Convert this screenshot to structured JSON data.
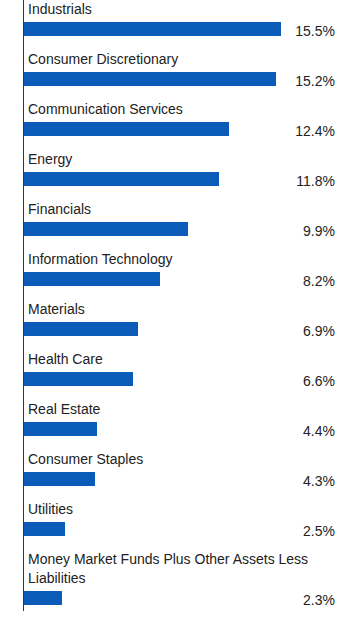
{
  "chart_data": {
    "type": "bar",
    "orientation": "horizontal",
    "categories": [
      "Industrials",
      "Consumer Discretionary",
      "Communication Services",
      "Energy",
      "Financials",
      "Information Technology",
      "Materials",
      "Health Care",
      "Real Estate",
      "Consumer Staples",
      "Utilities",
      "Money Market Funds Plus Other Assets Less Liabilities"
    ],
    "values": [
      15.5,
      15.2,
      12.4,
      11.8,
      9.9,
      8.2,
      6.9,
      6.6,
      4.4,
      4.3,
      2.5,
      2.3
    ],
    "value_labels": [
      "15.5%",
      "15.2%",
      "12.4%",
      "11.8%",
      "9.9%",
      "8.2%",
      "6.9%",
      "6.6%",
      "4.4%",
      "4.3%",
      "2.5%",
      "2.3%"
    ],
    "xlim": [
      0,
      20
    ],
    "color": "#0a5cb8",
    "data_labels": true,
    "tick_labels": false,
    "grid": false
  }
}
